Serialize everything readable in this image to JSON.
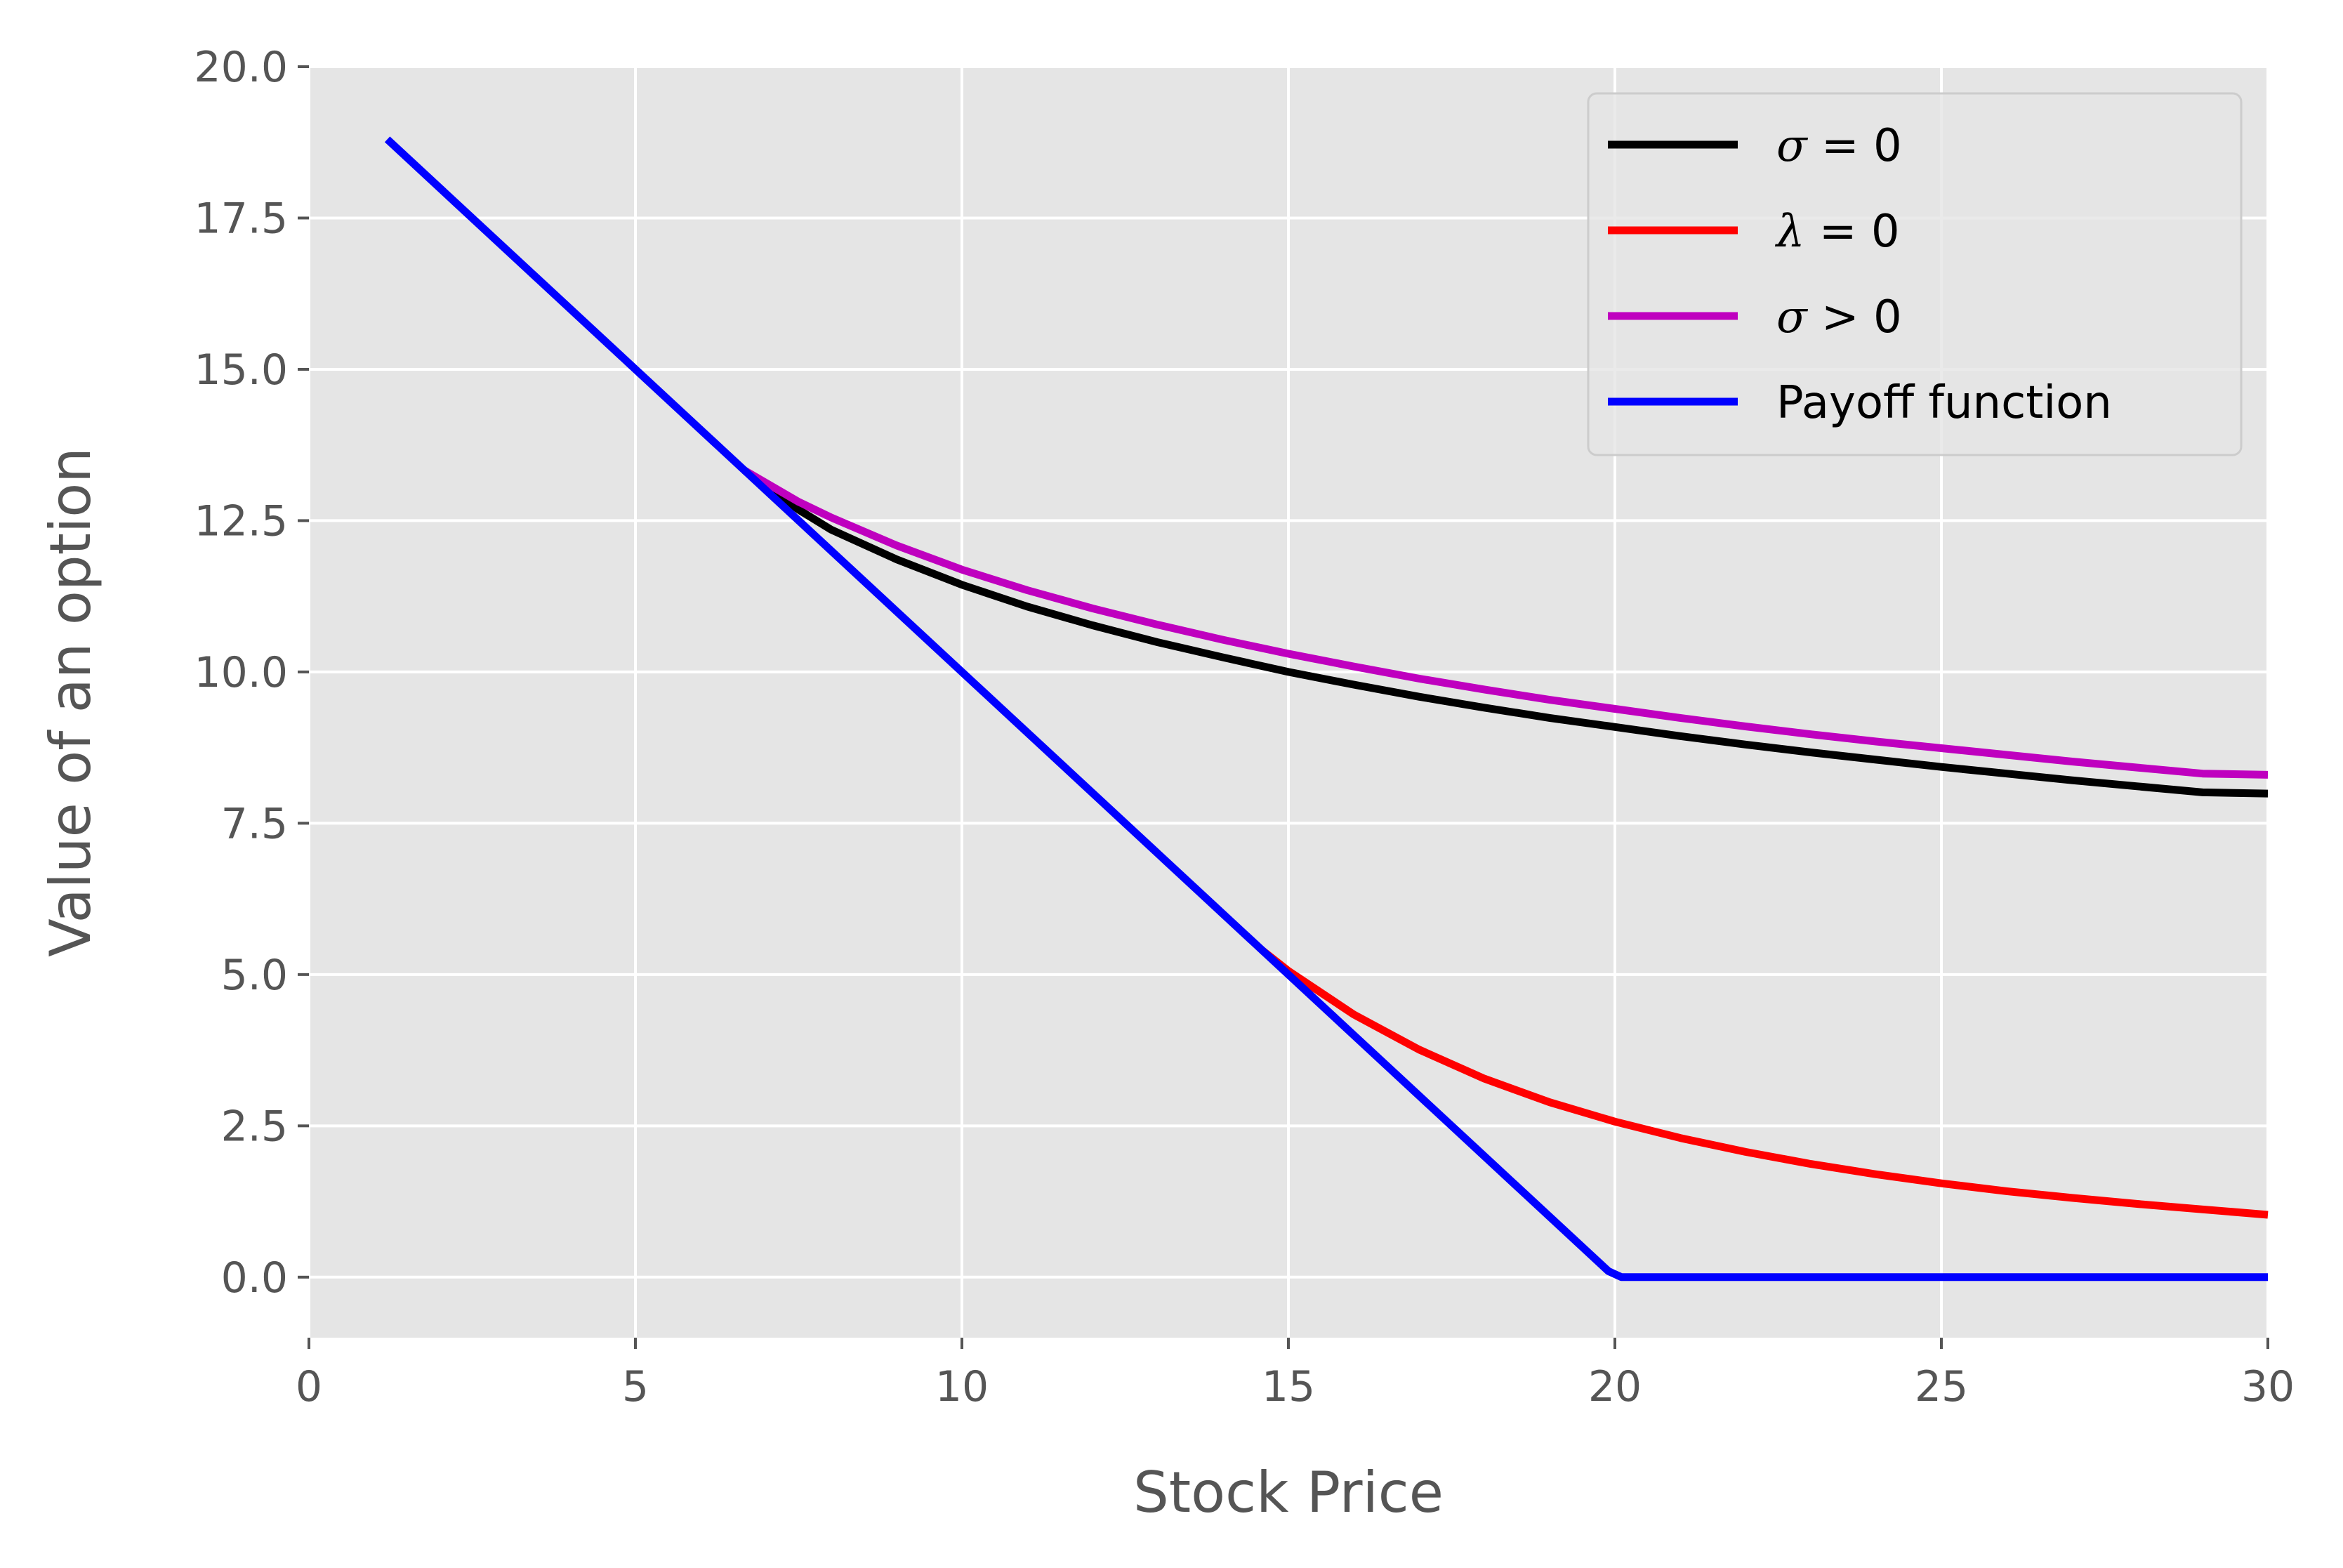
{
  "chart_data": {
    "type": "line",
    "title": "",
    "xlabel": "Stock Price",
    "ylabel": "Value of an option",
    "xlim": [
      0,
      30
    ],
    "ylim": [
      -1,
      20
    ],
    "xticks": [
      0,
      5,
      10,
      15,
      20,
      25,
      30
    ],
    "xtick_labels": [
      "0",
      "5",
      "10",
      "15",
      "20",
      "25",
      "30"
    ],
    "yticks": [
      0,
      2.5,
      5,
      7.5,
      10,
      12.5,
      15,
      17.5,
      20
    ],
    "ytick_labels": [
      "0.0",
      "2.5",
      "5.0",
      "7.5",
      "10.0",
      "12.5",
      "15.0",
      "17.5",
      "20.0"
    ],
    "grid": true,
    "legend_position": "top-right",
    "series": [
      {
        "name": "σ = 0",
        "name_parts": [
          "σ",
          " = 0"
        ],
        "color": "#000000",
        "x": [
          6.67,
          7.5,
          8,
          9,
          10,
          11,
          12,
          13,
          14,
          15,
          16,
          17,
          18,
          19,
          20,
          21,
          22,
          23,
          24,
          25,
          26,
          27,
          28,
          29,
          30
        ],
        "y": [
          13.33,
          12.68,
          12.35,
          11.86,
          11.44,
          11.08,
          10.77,
          10.49,
          10.24,
          10.0,
          9.79,
          9.59,
          9.41,
          9.24,
          9.09,
          8.94,
          8.8,
          8.67,
          8.55,
          8.43,
          8.32,
          8.21,
          8.11,
          8.01,
          7.99
        ]
      },
      {
        "name": "λ = 0",
        "name_parts": [
          "λ",
          " = 0"
        ],
        "color": "#ff0000",
        "x": [
          14.6,
          15,
          16,
          17,
          18,
          19,
          20,
          21,
          22,
          23,
          24,
          25,
          26,
          27,
          28,
          29,
          30
        ],
        "y": [
          5.4,
          5.06,
          4.34,
          3.76,
          3.28,
          2.89,
          2.57,
          2.3,
          2.07,
          1.87,
          1.7,
          1.55,
          1.42,
          1.31,
          1.21,
          1.12,
          1.03
        ]
      },
      {
        "name": "σ > 0",
        "name_parts": [
          "σ",
          " > 0"
        ],
        "color": "#bf00bf",
        "x": [
          6.67,
          7.5,
          8,
          9,
          10,
          11,
          12,
          13,
          14,
          15,
          16,
          17,
          18,
          19,
          20,
          21,
          22,
          23,
          24,
          25,
          26,
          27,
          28,
          29,
          30
        ],
        "y": [
          13.33,
          12.81,
          12.55,
          12.09,
          11.69,
          11.35,
          11.05,
          10.78,
          10.53,
          10.3,
          10.09,
          9.89,
          9.71,
          9.54,
          9.39,
          9.24,
          9.1,
          8.97,
          8.85,
          8.74,
          8.63,
          8.52,
          8.42,
          8.32,
          8.3
        ]
      },
      {
        "name": "Payoff function",
        "name_parts": [
          "",
          "Payoff function"
        ],
        "color": "#0000ff",
        "x": [
          1.2,
          19.9,
          20.1,
          30
        ],
        "y": [
          18.8,
          0.1,
          0,
          0
        ]
      }
    ]
  }
}
